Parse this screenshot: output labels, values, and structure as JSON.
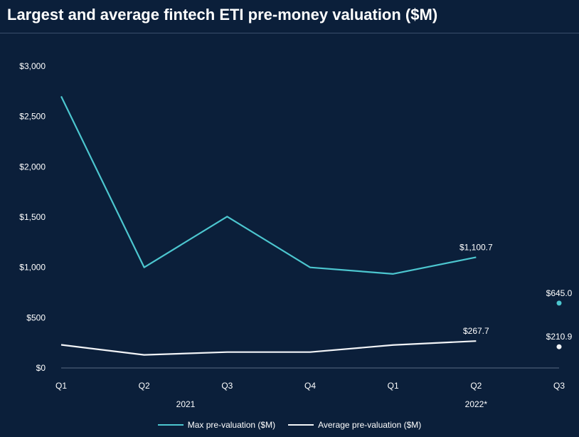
{
  "chart_data": {
    "type": "line",
    "title": "Largest and average fintech ETI pre-money valuation ($M)",
    "categories": [
      "Q1",
      "Q2",
      "Q3",
      "Q4",
      "Q1",
      "Q2",
      "Q3"
    ],
    "year_groups": [
      {
        "label": "2021",
        "from": 0,
        "to": 3
      },
      {
        "label": "2022*",
        "from": 4,
        "to": 6
      }
    ],
    "y_ticks": [
      "$0",
      "$500",
      "$1,000",
      "$1,500",
      "$2,000",
      "$2,500",
      "$3,000"
    ],
    "ylim": [
      0,
      3000
    ],
    "grid": false,
    "legend_position": "bottom",
    "colors": {
      "max": "#4cc6cf",
      "average": "#f2f4f7"
    },
    "series": [
      {
        "name": "Max pre-valuation ($M)",
        "values": [
          2700,
          1000,
          1505,
          1000,
          935,
          1100.7,
          645.0
        ],
        "line_through": 5,
        "labels": [
          {
            "index": 5,
            "text": "$1,100.7"
          },
          {
            "index": 6,
            "text": "$645.0"
          }
        ]
      },
      {
        "name": "Average pre-valuation ($M)",
        "values": [
          230,
          130,
          158,
          158,
          228,
          267.7,
          210.9
        ],
        "line_through": 5,
        "labels": [
          {
            "index": 5,
            "text": "$267.7"
          },
          {
            "index": 6,
            "text": "$210.9"
          }
        ]
      }
    ]
  }
}
